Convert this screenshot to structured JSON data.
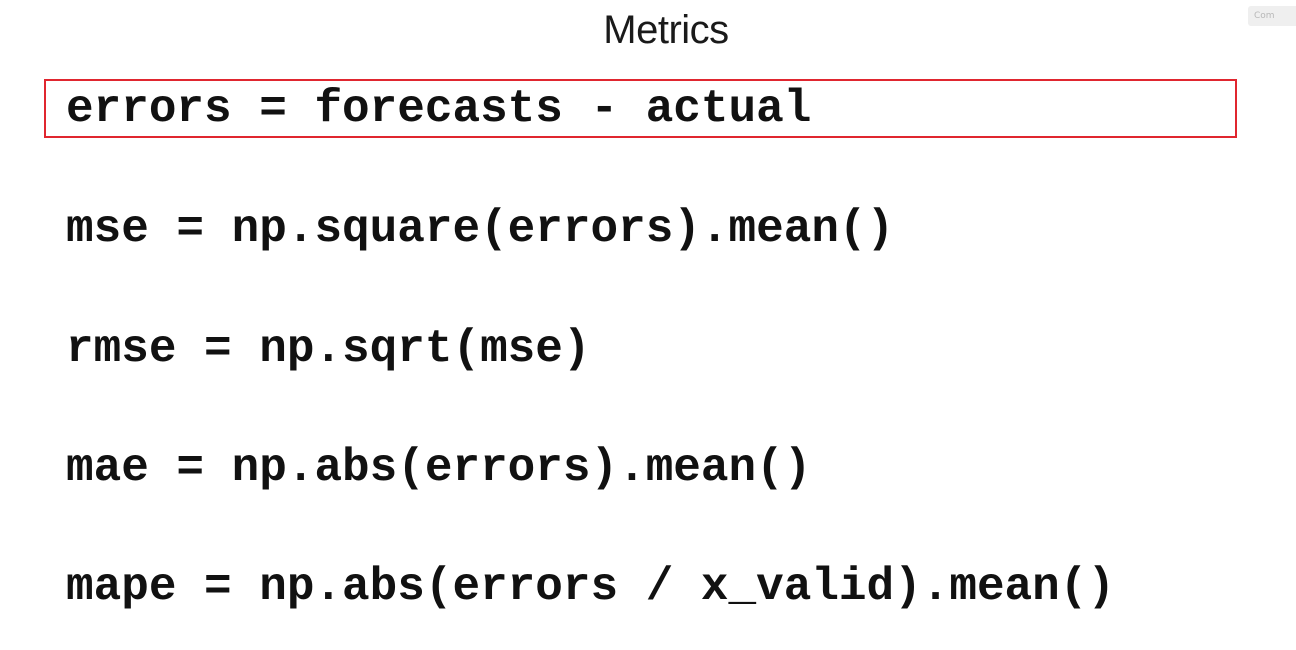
{
  "slide": {
    "title": "Metrics",
    "watermark": "Com"
  },
  "code": {
    "lines": [
      "errors = forecasts - actual",
      "mse = np.square(errors).mean()",
      "rmse = np.sqrt(mse)",
      "mae = np.abs(errors).mean()",
      "mape = np.abs(errors / x_valid).mean()"
    ]
  },
  "colors": {
    "highlight_border": "#e0262f",
    "text": "#111111",
    "background": "#ffffff"
  }
}
